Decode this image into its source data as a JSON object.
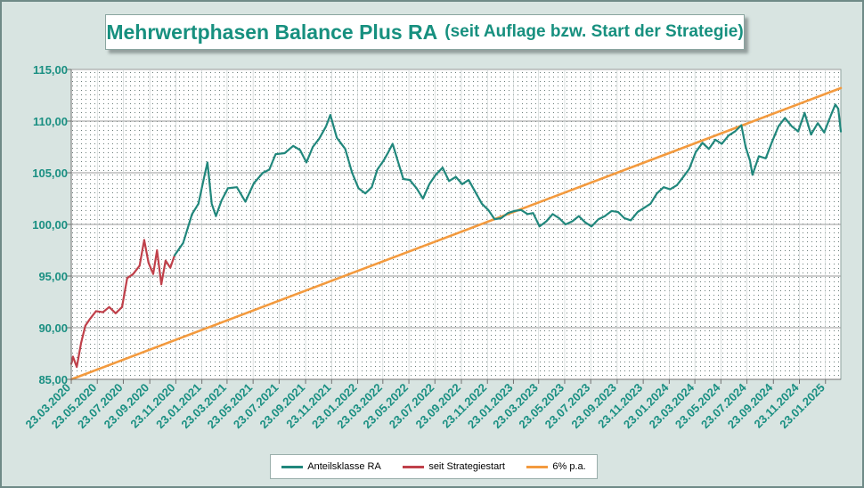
{
  "title": "Mehrwertphasen Balance Plus RA",
  "subtitle": "(seit Auflage bzw. Start der Strategie)",
  "colors": {
    "anteilsklasse": "#20877c",
    "strategiestart": "#c0404a",
    "trend": "#f39a3e",
    "tick_label": "#1a8f82"
  },
  "chart_data": {
    "type": "line",
    "title": "Mehrwertphasen Balance Plus RA (seit Auflage bzw. Start der Strategie)",
    "xlabel": "",
    "ylabel": "",
    "ylim": [
      85,
      115
    ],
    "xlim": [
      "2020-03-23",
      "2025-02-28"
    ],
    "grid": true,
    "legend_position": "bottom",
    "y_ticks": [
      "85,00",
      "90,00",
      "95,00",
      "100,00",
      "105,00",
      "110,00",
      "115,00"
    ],
    "x_ticks": [
      {
        "date": "2020-03-23",
        "label": "23.03.2020"
      },
      {
        "date": "2020-05-23",
        "label": "23.05.2020"
      },
      {
        "date": "2020-07-23",
        "label": "23.07.2020"
      },
      {
        "date": "2020-09-23",
        "label": "23.09.2020"
      },
      {
        "date": "2020-11-23",
        "label": "23.11.2020"
      },
      {
        "date": "2021-01-23",
        "label": "23.01.2021"
      },
      {
        "date": "2021-03-23",
        "label": "23.03.2021"
      },
      {
        "date": "2021-05-23",
        "label": "23.05.2021"
      },
      {
        "date": "2021-07-23",
        "label": "23.07.2021"
      },
      {
        "date": "2021-09-23",
        "label": "23.09.2021"
      },
      {
        "date": "2021-11-23",
        "label": "23.11.2021"
      },
      {
        "date": "2022-01-23",
        "label": "23.01.2022"
      },
      {
        "date": "2022-03-23",
        "label": "23.03.2022"
      },
      {
        "date": "2022-05-23",
        "label": "23.05.2022"
      },
      {
        "date": "2022-07-23",
        "label": "23.07.2022"
      },
      {
        "date": "2022-09-23",
        "label": "23.09.2022"
      },
      {
        "date": "2022-11-23",
        "label": "23.11.2022"
      },
      {
        "date": "2023-01-23",
        "label": "23.01.2023"
      },
      {
        "date": "2023-03-23",
        "label": "23.03.2023"
      },
      {
        "date": "2023-05-23",
        "label": "23.05.2023"
      },
      {
        "date": "2023-07-23",
        "label": "23.07.2023"
      },
      {
        "date": "2023-09-23",
        "label": "23.09.2023"
      },
      {
        "date": "2023-11-23",
        "label": "23.11.2023"
      },
      {
        "date": "2024-01-23",
        "label": "23.01.2024"
      },
      {
        "date": "2024-03-23",
        "label": "23.03.2024"
      },
      {
        "date": "2024-05-23",
        "label": "23.05.2024"
      },
      {
        "date": "2024-07-23",
        "label": "23.07.2024"
      },
      {
        "date": "2024-09-23",
        "label": "23.09.2024"
      },
      {
        "date": "2024-11-23",
        "label": "23.11.2024"
      },
      {
        "date": "2025-01-23",
        "label": "23.01.2025"
      }
    ],
    "series": [
      {
        "name": "Anteilsklasse RA",
        "color": "#20877c",
        "points": [
          [
            "2020-11-20",
            97.0
          ],
          [
            "2020-12-10",
            98.2
          ],
          [
            "2020-12-31",
            101.0
          ],
          [
            "2021-01-15",
            102.0
          ],
          [
            "2021-01-28",
            104.5
          ],
          [
            "2021-02-05",
            106.0
          ],
          [
            "2021-02-15",
            102.0
          ],
          [
            "2021-02-25",
            100.8
          ],
          [
            "2021-03-10",
            102.3
          ],
          [
            "2021-03-25",
            103.5
          ],
          [
            "2021-04-15",
            103.6
          ],
          [
            "2021-05-05",
            102.2
          ],
          [
            "2021-05-25",
            104.0
          ],
          [
            "2021-06-15",
            105.0
          ],
          [
            "2021-06-30",
            105.3
          ],
          [
            "2021-07-15",
            106.8
          ],
          [
            "2021-08-05",
            106.9
          ],
          [
            "2021-08-25",
            107.6
          ],
          [
            "2021-09-10",
            107.2
          ],
          [
            "2021-09-25",
            106.0
          ],
          [
            "2021-10-10",
            107.5
          ],
          [
            "2021-10-25",
            108.3
          ],
          [
            "2021-11-10",
            109.5
          ],
          [
            "2021-11-20",
            110.6
          ],
          [
            "2021-12-05",
            108.4
          ],
          [
            "2021-12-25",
            107.3
          ],
          [
            "2022-01-10",
            105.0
          ],
          [
            "2022-01-25",
            103.5
          ],
          [
            "2022-02-10",
            103.0
          ],
          [
            "2022-02-25",
            103.6
          ],
          [
            "2022-03-10",
            105.3
          ],
          [
            "2022-03-25",
            106.2
          ],
          [
            "2022-04-05",
            107.0
          ],
          [
            "2022-04-15",
            107.8
          ],
          [
            "2022-04-28",
            106.0
          ],
          [
            "2022-05-10",
            104.4
          ],
          [
            "2022-05-25",
            104.3
          ],
          [
            "2022-06-10",
            103.5
          ],
          [
            "2022-06-25",
            102.5
          ],
          [
            "2022-07-10",
            103.9
          ],
          [
            "2022-07-25",
            104.8
          ],
          [
            "2022-08-10",
            105.5
          ],
          [
            "2022-08-25",
            104.2
          ],
          [
            "2022-09-10",
            104.6
          ],
          [
            "2022-09-25",
            103.9
          ],
          [
            "2022-10-10",
            104.3
          ],
          [
            "2022-10-25",
            103.2
          ],
          [
            "2022-11-10",
            102.0
          ],
          [
            "2022-11-25",
            101.4
          ],
          [
            "2022-12-10",
            100.5
          ],
          [
            "2022-12-25",
            100.6
          ],
          [
            "2023-01-10",
            101.1
          ],
          [
            "2023-01-25",
            101.3
          ],
          [
            "2023-02-10",
            101.4
          ],
          [
            "2023-02-25",
            101.0
          ],
          [
            "2023-03-10",
            101.1
          ],
          [
            "2023-03-25",
            99.8
          ],
          [
            "2023-04-10",
            100.3
          ],
          [
            "2023-04-25",
            101.0
          ],
          [
            "2023-05-10",
            100.6
          ],
          [
            "2023-05-25",
            100.0
          ],
          [
            "2023-06-10",
            100.3
          ],
          [
            "2023-06-25",
            100.8
          ],
          [
            "2023-07-10",
            100.2
          ],
          [
            "2023-07-25",
            99.8
          ],
          [
            "2023-08-10",
            100.5
          ],
          [
            "2023-08-25",
            100.8
          ],
          [
            "2023-09-10",
            101.3
          ],
          [
            "2023-09-25",
            101.2
          ],
          [
            "2023-10-10",
            100.6
          ],
          [
            "2023-10-25",
            100.4
          ],
          [
            "2023-11-10",
            101.2
          ],
          [
            "2023-11-25",
            101.6
          ],
          [
            "2023-12-10",
            102.0
          ],
          [
            "2023-12-25",
            103.0
          ],
          [
            "2024-01-10",
            103.6
          ],
          [
            "2024-01-25",
            103.4
          ],
          [
            "2024-02-10",
            103.8
          ],
          [
            "2024-02-25",
            104.6
          ],
          [
            "2024-03-10",
            105.4
          ],
          [
            "2024-03-25",
            107.0
          ],
          [
            "2024-04-10",
            107.9
          ],
          [
            "2024-04-25",
            107.3
          ],
          [
            "2024-05-10",
            108.2
          ],
          [
            "2024-05-25",
            107.8
          ],
          [
            "2024-06-10",
            108.6
          ],
          [
            "2024-06-25",
            109.0
          ],
          [
            "2024-07-10",
            109.6
          ],
          [
            "2024-07-20",
            107.5
          ],
          [
            "2024-07-30",
            106.2
          ],
          [
            "2024-08-05",
            104.8
          ],
          [
            "2024-08-20",
            106.6
          ],
          [
            "2024-09-05",
            106.4
          ],
          [
            "2024-09-20",
            108.0
          ],
          [
            "2024-10-05",
            109.5
          ],
          [
            "2024-10-20",
            110.3
          ],
          [
            "2024-11-05",
            109.5
          ],
          [
            "2024-11-20",
            109.0
          ],
          [
            "2024-12-05",
            110.8
          ],
          [
            "2024-12-20",
            108.7
          ],
          [
            "2025-01-05",
            109.8
          ],
          [
            "2025-01-20",
            108.9
          ],
          [
            "2025-02-05",
            110.6
          ],
          [
            "2025-02-15",
            111.6
          ],
          [
            "2025-02-22",
            111.2
          ],
          [
            "2025-02-28",
            109.0
          ]
        ]
      },
      {
        "name": "seit Strategiestart",
        "color": "#c0404a",
        "points": [
          [
            "2020-03-23",
            86.5
          ],
          [
            "2020-03-27",
            87.2
          ],
          [
            "2020-04-05",
            86.2
          ],
          [
            "2020-04-15",
            88.5
          ],
          [
            "2020-04-25",
            90.2
          ],
          [
            "2020-05-05",
            90.8
          ],
          [
            "2020-05-20",
            91.6
          ],
          [
            "2020-06-05",
            91.5
          ],
          [
            "2020-06-20",
            92.0
          ],
          [
            "2020-07-05",
            91.4
          ],
          [
            "2020-07-20",
            92.0
          ],
          [
            "2020-08-01",
            94.8
          ],
          [
            "2020-08-15",
            95.2
          ],
          [
            "2020-08-30",
            96.0
          ],
          [
            "2020-09-10",
            98.5
          ],
          [
            "2020-09-20",
            96.3
          ],
          [
            "2020-10-01",
            95.2
          ],
          [
            "2020-10-10",
            97.5
          ],
          [
            "2020-10-20",
            94.2
          ],
          [
            "2020-10-30",
            96.5
          ],
          [
            "2020-11-10",
            95.8
          ],
          [
            "2020-11-20",
            97.0
          ]
        ]
      },
      {
        "name": "6% p.a.",
        "color": "#f39a3e",
        "points": [
          [
            "2020-03-23",
            85.0
          ],
          [
            "2025-02-28",
            113.2
          ]
        ]
      }
    ]
  }
}
